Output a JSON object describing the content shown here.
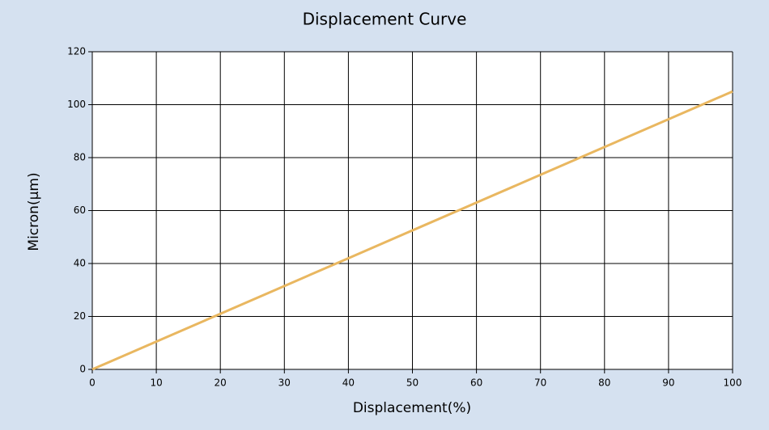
{
  "chart_data": {
    "type": "line",
    "title": "Displacement Curve",
    "x_label": "Displacement(%)",
    "y_label": "Micron(μm)",
    "x": [
      0,
      10,
      20,
      30,
      40,
      50,
      60,
      70,
      80,
      90,
      100
    ],
    "series": [
      {
        "name": "Displacement",
        "color": "#e9b760",
        "values": [
          0,
          10.5,
          21,
          31.5,
          42,
          52.5,
          63,
          73.5,
          84,
          94.5,
          105
        ]
      }
    ],
    "xlim": [
      0,
      100
    ],
    "xticks": [
      0,
      10,
      20,
      30,
      40,
      50,
      60,
      70,
      80,
      90,
      100
    ],
    "ylim": [
      0,
      120
    ],
    "yticks": [
      0,
      20,
      40,
      60,
      80,
      100,
      120
    ],
    "grid": true
  }
}
